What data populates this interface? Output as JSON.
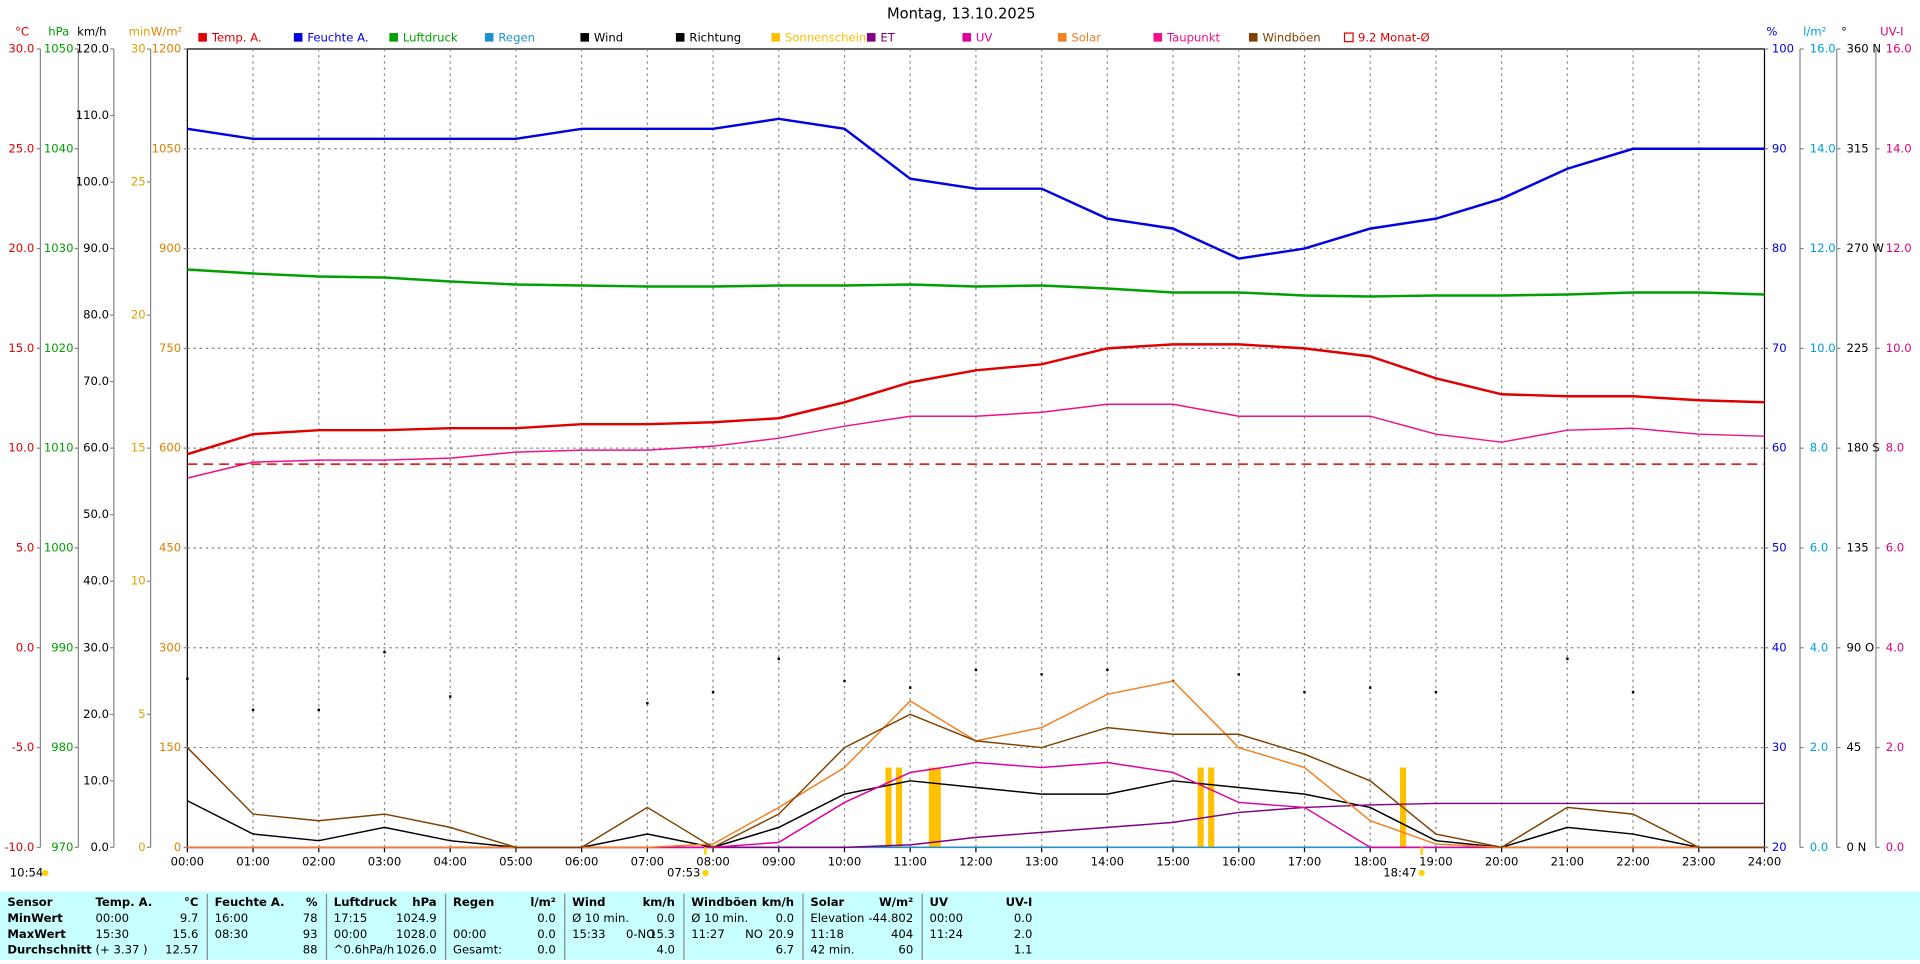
{
  "chart_data": {
    "type": "line",
    "title": "Montag, 13.10.2025",
    "xlim": [
      0,
      24
    ],
    "xticks": [
      {
        "value": 0,
        "label": "00:00"
      },
      {
        "value": 1,
        "label": "01:00"
      },
      {
        "value": 2,
        "label": "02:00"
      },
      {
        "value": 3,
        "label": "03:00"
      },
      {
        "value": 4,
        "label": "04:00"
      },
      {
        "value": 5,
        "label": "05:00"
      },
      {
        "value": 6,
        "label": "06:00"
      },
      {
        "value": 7,
        "label": "07:00"
      },
      {
        "value": 8,
        "label": "08:00"
      },
      {
        "value": 9,
        "label": "09:00"
      },
      {
        "value": 10,
        "label": "10:00"
      },
      {
        "value": 11,
        "label": "11:00"
      },
      {
        "value": 12,
        "label": "12:00"
      },
      {
        "value": 13,
        "label": "13:00"
      },
      {
        "value": 14,
        "label": "14:00"
      },
      {
        "value": 15,
        "label": "15:00"
      },
      {
        "value": 16,
        "label": "16:00"
      },
      {
        "value": 17,
        "label": "17:00"
      },
      {
        "value": 18,
        "label": "18:00"
      },
      {
        "value": 19,
        "label": "19:00"
      },
      {
        "value": 20,
        "label": "20:00"
      },
      {
        "value": 21,
        "label": "21:00"
      },
      {
        "value": 22,
        "label": "22:00"
      },
      {
        "value": 23,
        "label": "23:00"
      },
      {
        "value": 24,
        "label": "24:00"
      }
    ],
    "x": [
      0,
      1,
      2,
      3,
      4,
      5,
      6,
      7,
      8,
      9,
      10,
      11,
      12,
      13,
      14,
      15,
      16,
      17,
      18,
      19,
      20,
      21,
      22,
      23,
      24
    ],
    "grid": true,
    "axes": [
      {
        "label": "°C",
        "color": "#e00000",
        "side": "left",
        "ylim": [
          -10,
          30
        ],
        "yticks": [
          {
            "value": -10,
            "label": "-10.0"
          },
          {
            "value": -5,
            "label": "-5.0"
          },
          {
            "value": 0,
            "label": "0.0"
          },
          {
            "value": 5,
            "label": "5.0"
          },
          {
            "value": 10,
            "label": "10.0"
          },
          {
            "value": 15,
            "label": "15.0"
          },
          {
            "value": 20,
            "label": "20.0"
          },
          {
            "value": 25,
            "label": "25.0"
          },
          {
            "value": 30,
            "label": "30.0"
          }
        ]
      },
      {
        "label": "hPa",
        "color": "#00a000",
        "side": "left",
        "ylim": [
          970,
          1050
        ],
        "yticks": [
          970,
          980,
          990,
          1000,
          1010,
          1020,
          1030,
          1040,
          1050
        ]
      },
      {
        "label": "km/h",
        "color": "#000000",
        "side": "left",
        "ylim": [
          0,
          120
        ],
        "yticks": [
          {
            "value": 0,
            "label": "0.0"
          },
          {
            "value": 10,
            "label": "10.0"
          },
          {
            "value": 20,
            "label": "20.0"
          },
          {
            "value": 30,
            "label": "30.0"
          },
          {
            "value": 40,
            "label": "40.0"
          },
          {
            "value": 50,
            "label": "50.0"
          },
          {
            "value": 60,
            "label": "60.0"
          },
          {
            "value": 70,
            "label": "70.0"
          },
          {
            "value": 80,
            "label": "80.0"
          },
          {
            "value": 90,
            "label": "90.0"
          },
          {
            "value": 100,
            "label": "100.0"
          },
          {
            "value": 110,
            "label": "110.0"
          },
          {
            "value": 120,
            "label": "120.0"
          }
        ]
      },
      {
        "label": "min",
        "color": "#e0a000",
        "side": "left",
        "ylim": [
          0,
          30
        ],
        "yticks": [
          0,
          5,
          10,
          15,
          20,
          25,
          30
        ]
      },
      {
        "label": "W/m²",
        "color": "#e08000",
        "side": "left",
        "ylim": [
          0,
          1200
        ],
        "yticks": [
          0,
          150,
          300,
          450,
          600,
          750,
          900,
          1050,
          1200
        ]
      },
      {
        "label": "%",
        "color": "#0000e0",
        "side": "right",
        "ylim": [
          20,
          100
        ],
        "yticks": [
          20,
          30,
          40,
          50,
          60,
          70,
          80,
          90,
          100
        ]
      },
      {
        "label": "l/m²",
        "color": "#00a0e0",
        "side": "right",
        "ylim": [
          0,
          16
        ],
        "yticks": [
          {
            "value": 0,
            "label": "0.0"
          },
          {
            "value": 2,
            "label": "2.0"
          },
          {
            "value": 4,
            "label": "4.0"
          },
          {
            "value": 6,
            "label": "6.0"
          },
          {
            "value": 8,
            "label": "8.0"
          },
          {
            "value": 10,
            "label": "10.0"
          },
          {
            "value": 12,
            "label": "12.0"
          },
          {
            "value": 14,
            "label": "14.0"
          },
          {
            "value": 16,
            "label": "16.0"
          }
        ]
      },
      {
        "label": "°",
        "color": "#000000",
        "side": "right",
        "ylim": [
          0,
          360
        ],
        "yticks": [
          {
            "value": 0,
            "label": "0 N"
          },
          45,
          {
            "value": 90,
            "label": "90 O"
          },
          135,
          {
            "value": 180,
            "label": "180 S"
          },
          225,
          {
            "value": 270,
            "label": "270 W"
          },
          315,
          {
            "value": 360,
            "label": "360 N"
          }
        ]
      },
      {
        "label": "UV-I",
        "color": "#e0007f",
        "side": "right",
        "ylim": [
          0,
          16
        ],
        "yticks": [
          {
            "value": 0,
            "label": "0.0"
          },
          {
            "value": 2,
            "label": "2.0"
          },
          {
            "value": 4,
            "label": "4.0"
          },
          {
            "value": 6,
            "label": "6.0"
          },
          {
            "value": 8,
            "label": "8.0"
          },
          {
            "value": 10,
            "label": "10.0"
          },
          {
            "value": 12,
            "label": "12.0"
          },
          {
            "value": 14,
            "label": "14.0"
          },
          {
            "value": 16,
            "label": "16.0"
          }
        ]
      }
    ],
    "series": [
      {
        "name": "Temp. A.",
        "color": "#e00000",
        "axis": 0,
        "style": "line",
        "values": [
          9.7,
          10.7,
          10.9,
          10.9,
          11.0,
          11.0,
          11.2,
          11.2,
          11.3,
          11.5,
          12.3,
          13.3,
          13.9,
          14.2,
          15.0,
          15.2,
          15.2,
          15.0,
          14.6,
          13.5,
          12.7,
          12.6,
          12.6,
          12.4,
          12.3
        ]
      },
      {
        "name": "Feuchte A.",
        "color": "#0000e0",
        "axis": 5,
        "style": "line",
        "values": [
          92,
          91,
          91,
          91,
          91,
          91,
          92,
          92,
          92,
          93,
          92,
          87,
          86,
          86,
          83,
          82,
          79,
          80,
          82,
          83,
          85,
          88,
          90,
          90,
          90
        ]
      },
      {
        "name": "Luftdruck",
        "color": "#00a000",
        "axis": 1,
        "style": "line",
        "values": [
          1027.9,
          1027.5,
          1027.2,
          1027.1,
          1026.7,
          1026.4,
          1026.3,
          1026.2,
          1026.2,
          1026.3,
          1026.3,
          1026.4,
          1026.2,
          1026.3,
          1026.0,
          1025.6,
          1025.6,
          1025.3,
          1025.2,
          1025.3,
          1025.3,
          1025.4,
          1025.6,
          1025.6,
          1025.4
        ]
      },
      {
        "name": "Regen",
        "color": "#1e90d0",
        "axis": 6,
        "style": "line",
        "values": [
          0,
          0,
          0,
          0,
          0,
          0,
          0,
          0,
          0,
          0,
          0,
          0,
          0,
          0,
          0,
          0,
          0,
          0,
          0,
          0,
          0,
          0,
          0,
          0,
          0
        ]
      },
      {
        "name": "Wind",
        "color": "#000000",
        "axis": 2,
        "style": "line",
        "values": [
          7,
          2,
          1,
          3,
          1,
          0,
          0,
          2,
          0,
          3,
          8,
          10,
          9,
          8,
          8,
          10,
          9,
          8,
          6,
          1,
          0,
          3,
          2,
          0,
          0
        ]
      },
      {
        "name": "Richtung",
        "color": "#000000",
        "axis": 7,
        "style": "dots",
        "values": [
          76,
          62,
          62,
          88,
          68,
          null,
          null,
          65,
          70,
          85,
          75,
          72,
          80,
          78,
          80,
          75,
          78,
          70,
          72,
          70,
          null,
          85,
          70,
          null,
          null
        ]
      },
      {
        "name": "Sonnenschein",
        "color": "#ffc000",
        "axis": 3,
        "style": "bars",
        "x": [
          10.67,
          10.83,
          11.33,
          11.42,
          15.42,
          15.58,
          18.5
        ],
        "values": [
          3,
          3,
          3,
          3,
          3,
          3,
          3
        ]
      },
      {
        "name": "ET",
        "color": "#800080",
        "axis": 6,
        "style": "line",
        "values": [
          0,
          0,
          0,
          0,
          0,
          0,
          0,
          0,
          0,
          0,
          0,
          0.05,
          0.2,
          0.3,
          0.4,
          0.5,
          0.7,
          0.8,
          0.85,
          0.88,
          0.88,
          0.88,
          0.88,
          0.88,
          0.88
        ]
      },
      {
        "name": "UV",
        "color": "#e000a0",
        "axis": 8,
        "style": "line",
        "values": [
          0,
          0,
          0,
          0,
          0,
          0,
          0,
          0,
          0,
          0.1,
          0.9,
          1.5,
          1.7,
          1.6,
          1.7,
          1.5,
          0.9,
          0.8,
          0,
          0,
          0,
          0,
          0,
          0,
          0
        ]
      },
      {
        "name": "Solar",
        "color": "#f08020",
        "axis": 4,
        "style": "line",
        "values": [
          0,
          0,
          0,
          0,
          0,
          0,
          0,
          0,
          5,
          60,
          120,
          220,
          160,
          180,
          230,
          250,
          150,
          120,
          40,
          5,
          0,
          0,
          0,
          0,
          0
        ]
      },
      {
        "name": "Taupunkt",
        "color": "#f0108a",
        "axis": 0,
        "style": "line",
        "values": [
          8.5,
          9.3,
          9.4,
          9.4,
          9.5,
          9.8,
          9.9,
          9.9,
          10.1,
          10.5,
          11.1,
          11.6,
          11.6,
          11.8,
          12.2,
          12.2,
          11.6,
          11.6,
          11.6,
          10.7,
          10.3,
          10.9,
          11.0,
          10.7,
          10.6
        ]
      },
      {
        "name": "Windböen",
        "color": "#804000",
        "axis": 2,
        "style": "line",
        "values": [
          15,
          5,
          4,
          5,
          3,
          0,
          0,
          6,
          0,
          5,
          15,
          20,
          16,
          15,
          18,
          17,
          17,
          14,
          10,
          2,
          0,
          6,
          5,
          0,
          0
        ]
      },
      {
        "name": "9.2 Monat-Ø",
        "color": "#e00000",
        "axis": 0,
        "style": "hline",
        "value": 9.2
      }
    ],
    "annotations": [
      {
        "text": "10:54"
      },
      {
        "text": "07:53",
        "x": 7.883
      },
      {
        "text": "18:47",
        "x": 18.783
      }
    ]
  },
  "stats_table": {
    "row_labels": [
      "Sensor",
      "MinWert",
      "MaxWert",
      "Durchschnitt"
    ],
    "groups": [
      {
        "header": "Temp. A.",
        "unit": "°C",
        "rows": [
          [
            "00:00",
            null,
            "9.7"
          ],
          [
            "15:30",
            null,
            "15.6"
          ],
          [
            "(+ 3.37 )",
            null,
            "12.57"
          ]
        ]
      },
      {
        "header": "Feuchte A.",
        "unit": "%",
        "rows": [
          [
            "16:00",
            null,
            "78"
          ],
          [
            "08:30",
            null,
            "93"
          ],
          [
            null,
            null,
            "88"
          ]
        ]
      },
      {
        "header": "Luftdruck",
        "unit": "hPa",
        "rows": [
          [
            "17:15",
            null,
            "1024.9"
          ],
          [
            "00:00",
            null,
            "1028.0"
          ],
          [
            "^0.6hPa/h",
            null,
            "1026.0"
          ]
        ]
      },
      {
        "header": "Regen",
        "unit": "l/m²",
        "rows": [
          [
            null,
            null,
            "0.0"
          ],
          [
            "00:00",
            null,
            "0.0"
          ],
          [
            "Gesamt:",
            null,
            "0.0"
          ]
        ]
      },
      {
        "header": "Wind",
        "unit": "km/h",
        "rows": [
          [
            "Ø 10 min.",
            null,
            "0.0"
          ],
          [
            "15:33",
            "0-NO",
            "15.3"
          ],
          [
            null,
            null,
            "4.0"
          ]
        ]
      },
      {
        "header": "Windböen",
        "unit": "km/h",
        "rows": [
          [
            "Ø 10 min.",
            null,
            "0.0"
          ],
          [
            "11:27",
            "NO",
            "20.9"
          ],
          [
            null,
            null,
            "6.7"
          ]
        ]
      },
      {
        "header": "Solar",
        "unit": "W/m²",
        "rows": [
          [
            "Elevation",
            null,
            "-44.802"
          ],
          [
            "11:18",
            null,
            "404"
          ],
          [
            "42 min.",
            null,
            "60"
          ]
        ]
      },
      {
        "header": "UV",
        "unit": "UV-I",
        "rows": [
          [
            "00:00",
            null,
            "0.0"
          ],
          [
            "11:24",
            null,
            "2.0"
          ],
          [
            null,
            null,
            "1.1"
          ]
        ]
      }
    ]
  }
}
